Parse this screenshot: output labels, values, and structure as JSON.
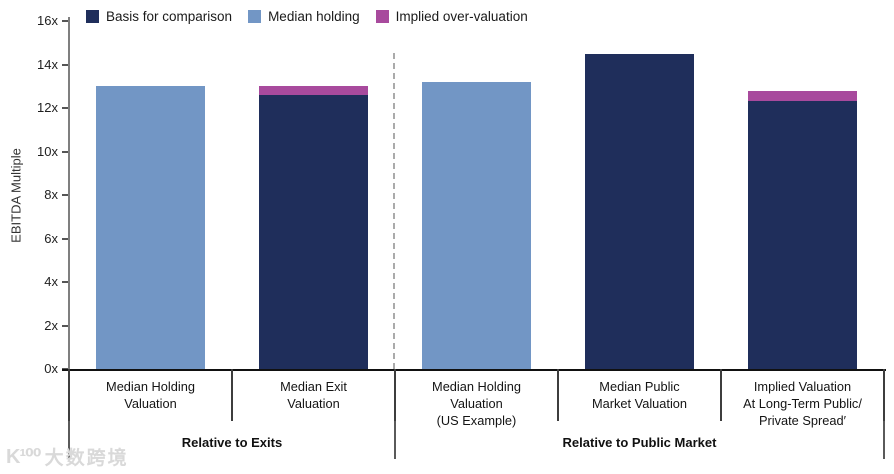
{
  "watermark": {
    "logo": "K¹⁰⁰",
    "text": "大数跨境"
  },
  "chart_data": {
    "type": "bar",
    "subtype": "stacked",
    "title": "",
    "xlabel": "",
    "ylabel": "EBITDA Multiple",
    "ylim": [
      0,
      16
    ],
    "ytick_step": 2,
    "ytick_labels": [
      "0x",
      "2x",
      "4x",
      "6x",
      "8x",
      "10x",
      "12x",
      "14x",
      "16x"
    ],
    "grid": false,
    "legend_position": "top",
    "legend": [
      {
        "label": "Basis for comparison",
        "color": "#1f2e5b"
      },
      {
        "label": "Median holding",
        "color": "#7296c5"
      },
      {
        "label": "Implied over-valuation",
        "color": "#a84a9d"
      }
    ],
    "bars": [
      {
        "category_lines": [
          "Median Holding",
          "Valuation"
        ],
        "segments": [
          {
            "series": "Median holding",
            "value": 13.0
          }
        ],
        "total": 13.0
      },
      {
        "category_lines": [
          "Median Exit",
          "Valuation"
        ],
        "segments": [
          {
            "series": "Basis for comparison",
            "value": 12.6
          },
          {
            "series": "Implied over-valuation",
            "value": 0.4
          }
        ],
        "total": 13.0
      },
      {
        "category_lines": [
          "Median Holding",
          "Valuation",
          "(US Example)"
        ],
        "segments": [
          {
            "series": "Median holding",
            "value": 13.2
          }
        ],
        "total": 13.2
      },
      {
        "category_lines": [
          "Median Public",
          "Market Valuation"
        ],
        "segments": [
          {
            "series": "Basis for comparison",
            "value": 14.5
          }
        ],
        "total": 14.5
      },
      {
        "category_lines": [
          "Implied Valuation",
          "At Long-Term Public/",
          "Private Spread′"
        ],
        "segments": [
          {
            "series": "Basis for comparison",
            "value": 12.3
          },
          {
            "series": "Implied over-valuation",
            "value": 0.5
          }
        ],
        "total": 12.8
      }
    ],
    "groups": [
      {
        "label": "Relative to Exits",
        "from": 0,
        "to": 2
      },
      {
        "label": "Relative to Public Market",
        "from": 2,
        "to": 5
      }
    ],
    "divider_after_bar_index": 2
  }
}
